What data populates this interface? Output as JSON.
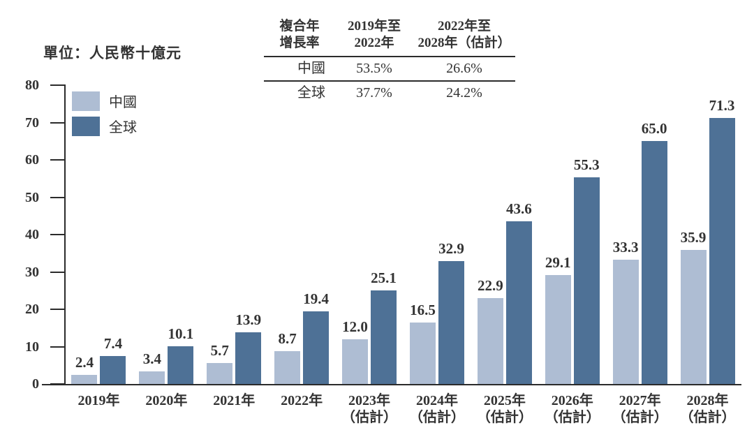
{
  "unit_label": "單位：人民幣十億元",
  "colors": {
    "china": "#aebdd3",
    "global": "#4e7196",
    "axis": "#2b2b2b",
    "text": "#333333"
  },
  "cagr_table": {
    "header": {
      "col1_line1": "複合年",
      "col1_line2": "增長率",
      "col2_line1": "2019年至",
      "col2_line2": "2022年",
      "col3_line1": "2022年至",
      "col3_line2": "2028年（估計）"
    },
    "rows": [
      {
        "label": "中國",
        "values": [
          "53.5%",
          "26.6%"
        ]
      },
      {
        "label": "全球",
        "values": [
          "37.7%",
          "24.2%"
        ]
      }
    ]
  },
  "legend": [
    {
      "name": "中國",
      "color_key": "china"
    },
    {
      "name": "全球",
      "color_key": "global"
    }
  ],
  "chart_data": {
    "type": "bar",
    "title": "",
    "ylabel": "單位：人民幣十億元",
    "xlabel": "",
    "ylim": [
      0,
      80
    ],
    "yticks": [
      0,
      10,
      20,
      30,
      40,
      50,
      60,
      70,
      80
    ],
    "grid": false,
    "legend_position": "top-left",
    "categories": [
      {
        "year": "2019年",
        "note": ""
      },
      {
        "year": "2020年",
        "note": ""
      },
      {
        "year": "2021年",
        "note": ""
      },
      {
        "year": "2022年",
        "note": ""
      },
      {
        "year": "2023年",
        "note": "（估計）"
      },
      {
        "year": "2024年",
        "note": "（估計）"
      },
      {
        "year": "2025年",
        "note": "（估計）"
      },
      {
        "year": "2026年",
        "note": "（估計）"
      },
      {
        "year": "2027年",
        "note": "（估計）"
      },
      {
        "year": "2028年",
        "note": "（估計）"
      }
    ],
    "series": [
      {
        "name": "中國",
        "values": [
          2.4,
          3.4,
          5.7,
          8.7,
          12.0,
          16.5,
          22.9,
          29.1,
          33.3,
          35.9
        ]
      },
      {
        "name": "全球",
        "values": [
          7.4,
          10.1,
          13.9,
          19.4,
          25.1,
          32.9,
          43.6,
          55.3,
          65.0,
          71.3
        ]
      }
    ]
  }
}
